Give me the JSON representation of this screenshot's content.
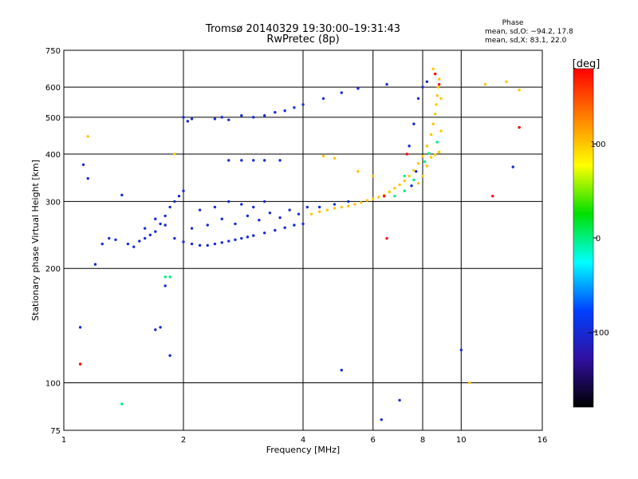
{
  "chart_data": {
    "type": "scatter",
    "title": "Tromsø 20140329 19:30:00–19:31:43",
    "subtitle": "RwPretec (8p)",
    "xlabel": "Frequency [MHz]",
    "ylabel": "Stationary phase Virtual Height [km]",
    "x_scale": "log",
    "y_scale": "log",
    "xlim": [
      1,
      16
    ],
    "ylim": [
      75,
      750
    ],
    "x_ticks": [
      1,
      2,
      4,
      6,
      8,
      10,
      16
    ],
    "y_ticks": [
      75,
      100,
      200,
      300,
      400,
      500,
      600,
      750
    ],
    "x_gridlines": [
      2,
      4,
      6,
      8,
      10
    ],
    "y_gridlines": [
      100,
      200,
      300,
      400,
      500,
      600
    ],
    "grid": true,
    "phase_box": {
      "title": "Phase",
      "line1": "mean, sd,O: −94.2, 17.8",
      "line2": "mean, sd,X:  83.1, 22.0"
    },
    "colorbar": {
      "label": "[deg]",
      "range": [
        -180,
        180
      ],
      "ticks": [
        100,
        0,
        -100
      ],
      "colors": [
        "#ff0000",
        "#ff7f00",
        "#ffff00",
        "#00e000",
        "#00ffff",
        "#0040ff",
        "#3010a0",
        "#000000"
      ]
    },
    "series": [
      {
        "phase_deg": -100,
        "points": [
          [
            1.45,
            232
          ],
          [
            1.5,
            228
          ],
          [
            1.55,
            236
          ],
          [
            1.6,
            240
          ],
          [
            1.65,
            245
          ],
          [
            1.7,
            250
          ],
          [
            1.75,
            262
          ],
          [
            1.8,
            275
          ],
          [
            1.85,
            290
          ],
          [
            1.9,
            300
          ],
          [
            1.95,
            310
          ],
          [
            2.0,
            320
          ],
          [
            1.6,
            255
          ],
          [
            1.7,
            270
          ],
          [
            1.8,
            260
          ],
          [
            1.9,
            240
          ],
          [
            2.0,
            235
          ],
          [
            2.1,
            232
          ],
          [
            2.2,
            230
          ],
          [
            2.3,
            230
          ],
          [
            2.4,
            232
          ],
          [
            2.5,
            234
          ],
          [
            2.6,
            236
          ],
          [
            2.7,
            238
          ],
          [
            2.8,
            240
          ],
          [
            2.9,
            242
          ],
          [
            3.0,
            244
          ],
          [
            3.2,
            248
          ],
          [
            3.4,
            252
          ],
          [
            3.6,
            256
          ],
          [
            3.8,
            260
          ],
          [
            4.0,
            262
          ],
          [
            2.1,
            255
          ],
          [
            2.3,
            260
          ],
          [
            2.5,
            270
          ],
          [
            2.7,
            262
          ],
          [
            2.9,
            275
          ],
          [
            3.1,
            268
          ],
          [
            3.3,
            280
          ],
          [
            3.5,
            272
          ],
          [
            3.7,
            285
          ],
          [
            3.9,
            278
          ],
          [
            4.1,
            290
          ],
          [
            2.2,
            285
          ],
          [
            2.4,
            290
          ],
          [
            2.6,
            300
          ],
          [
            2.8,
            295
          ],
          [
            3.0,
            290
          ],
          [
            3.2,
            300
          ],
          [
            1.25,
            232
          ],
          [
            1.3,
            240
          ],
          [
            1.35,
            238
          ],
          [
            1.2,
            205
          ],
          [
            2.0,
            500
          ],
          [
            2.05,
            488
          ],
          [
            2.1,
            495
          ],
          [
            2.4,
            495
          ],
          [
            2.5,
            500
          ],
          [
            2.6,
            492
          ],
          [
            2.8,
            505
          ],
          [
            3.0,
            500
          ],
          [
            3.2,
            505
          ],
          [
            3.4,
            515
          ],
          [
            3.6,
            520
          ],
          [
            3.8,
            530
          ],
          [
            4.0,
            540
          ],
          [
            4.5,
            560
          ],
          [
            5.0,
            580
          ],
          [
            5.5,
            595
          ],
          [
            2.6,
            385
          ],
          [
            2.8,
            385
          ],
          [
            3.0,
            385
          ],
          [
            3.2,
            385
          ],
          [
            3.5,
            385
          ],
          [
            4.4,
            290
          ],
          [
            4.8,
            295
          ],
          [
            5.2,
            300
          ],
          [
            6.5,
            610
          ],
          [
            7.4,
            420
          ],
          [
            7.6,
            480
          ],
          [
            7.8,
            560
          ],
          [
            8.0,
            600
          ],
          [
            8.2,
            620
          ],
          [
            7.5,
            330
          ],
          [
            7.7,
            360
          ],
          [
            1.1,
            140
          ],
          [
            1.12,
            375
          ],
          [
            1.15,
            345
          ],
          [
            1.7,
            138
          ],
          [
            1.75,
            140
          ],
          [
            1.8,
            180
          ],
          [
            1.85,
            118
          ],
          [
            10.0,
            122
          ],
          [
            6.3,
            80
          ],
          [
            7.0,
            90
          ],
          [
            1.4,
            312
          ],
          [
            13.5,
            370
          ],
          [
            5.0,
            108
          ]
        ]
      },
      {
        "phase_deg": 100,
        "points": [
          [
            4.2,
            278
          ],
          [
            4.4,
            282
          ],
          [
            4.6,
            285
          ],
          [
            4.8,
            288
          ],
          [
            5.0,
            290
          ],
          [
            5.2,
            292
          ],
          [
            5.4,
            295
          ],
          [
            5.6,
            298
          ],
          [
            5.8,
            302
          ],
          [
            6.0,
            305
          ],
          [
            6.2,
            308
          ],
          [
            6.4,
            312
          ],
          [
            6.6,
            318
          ],
          [
            6.8,
            325
          ],
          [
            7.0,
            332
          ],
          [
            7.2,
            340
          ],
          [
            7.4,
            350
          ],
          [
            7.6,
            362
          ],
          [
            7.8,
            378
          ],
          [
            8.0,
            395
          ],
          [
            8.2,
            420
          ],
          [
            8.4,
            450
          ],
          [
            8.5,
            480
          ],
          [
            8.6,
            510
          ],
          [
            8.65,
            540
          ],
          [
            8.7,
            570
          ],
          [
            8.75,
            600
          ],
          [
            8.8,
            630
          ],
          [
            8.9,
            560
          ],
          [
            8.9,
            460
          ],
          [
            8.8,
            405
          ],
          [
            8.6,
            398
          ],
          [
            8.4,
            392
          ],
          [
            8.2,
            372
          ],
          [
            8.0,
            350
          ],
          [
            7.8,
            335
          ],
          [
            4.5,
            395
          ],
          [
            4.8,
            390
          ],
          [
            5.5,
            360
          ],
          [
            6.0,
            350
          ],
          [
            1.15,
            445
          ],
          [
            1.9,
            400
          ],
          [
            8.5,
            670
          ],
          [
            11.5,
            610
          ],
          [
            13.0,
            620
          ],
          [
            10.5,
            100
          ],
          [
            14.0,
            590
          ]
        ]
      },
      {
        "phase_deg": 0,
        "points": [
          [
            6.8,
            310
          ],
          [
            7.2,
            320
          ],
          [
            7.6,
            342
          ],
          [
            8.1,
            382
          ],
          [
            8.3,
            402
          ],
          [
            8.7,
            430
          ],
          [
            1.8,
            190
          ],
          [
            1.85,
            190
          ],
          [
            1.4,
            88
          ],
          [
            7.2,
            350
          ]
        ]
      },
      {
        "phase_deg": 180,
        "points": [
          [
            8.6,
            650
          ],
          [
            8.8,
            610
          ],
          [
            6.4,
            310
          ],
          [
            12.0,
            310
          ],
          [
            14.0,
            470
          ],
          [
            1.1,
            112
          ],
          [
            6.5,
            240
          ],
          [
            7.3,
            400
          ]
        ]
      }
    ]
  }
}
